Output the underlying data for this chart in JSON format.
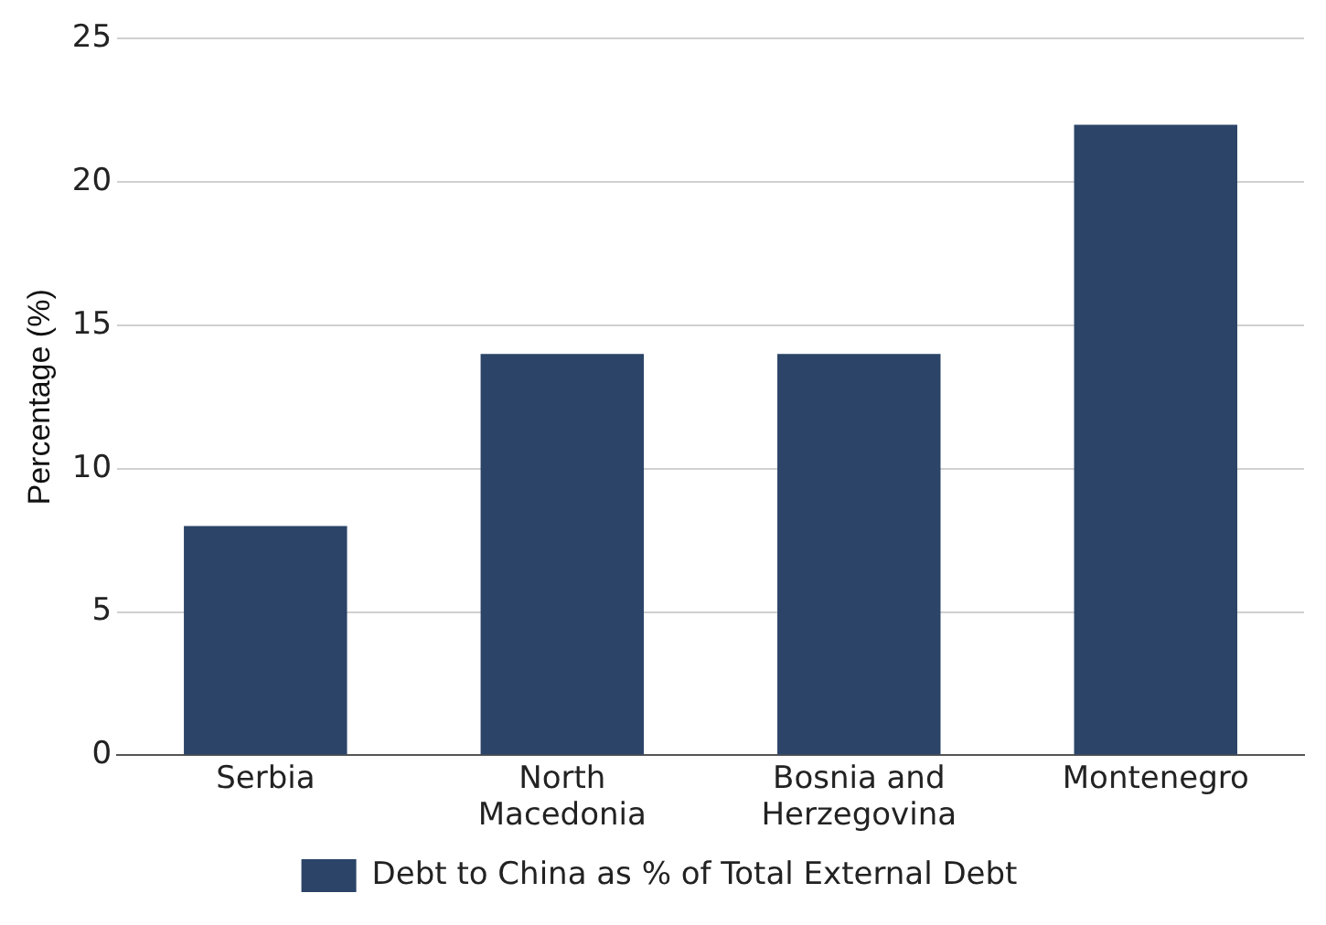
{
  "chart_data": {
    "type": "bar",
    "ylabel": "Percentage (%)",
    "categories": [
      "Serbia",
      "North Macedonia",
      "Bosnia and Herzegovina",
      "Montenegro"
    ],
    "series": [
      {
        "name": "Debt to China as % of Total External Debt",
        "color": "#2b4468",
        "values": [
          8,
          14,
          14,
          22
        ]
      }
    ],
    "ylim": [
      0,
      25
    ],
    "yticks": [
      0,
      5,
      10,
      15,
      20,
      25
    ],
    "grid": "y",
    "legend": "bottom"
  }
}
